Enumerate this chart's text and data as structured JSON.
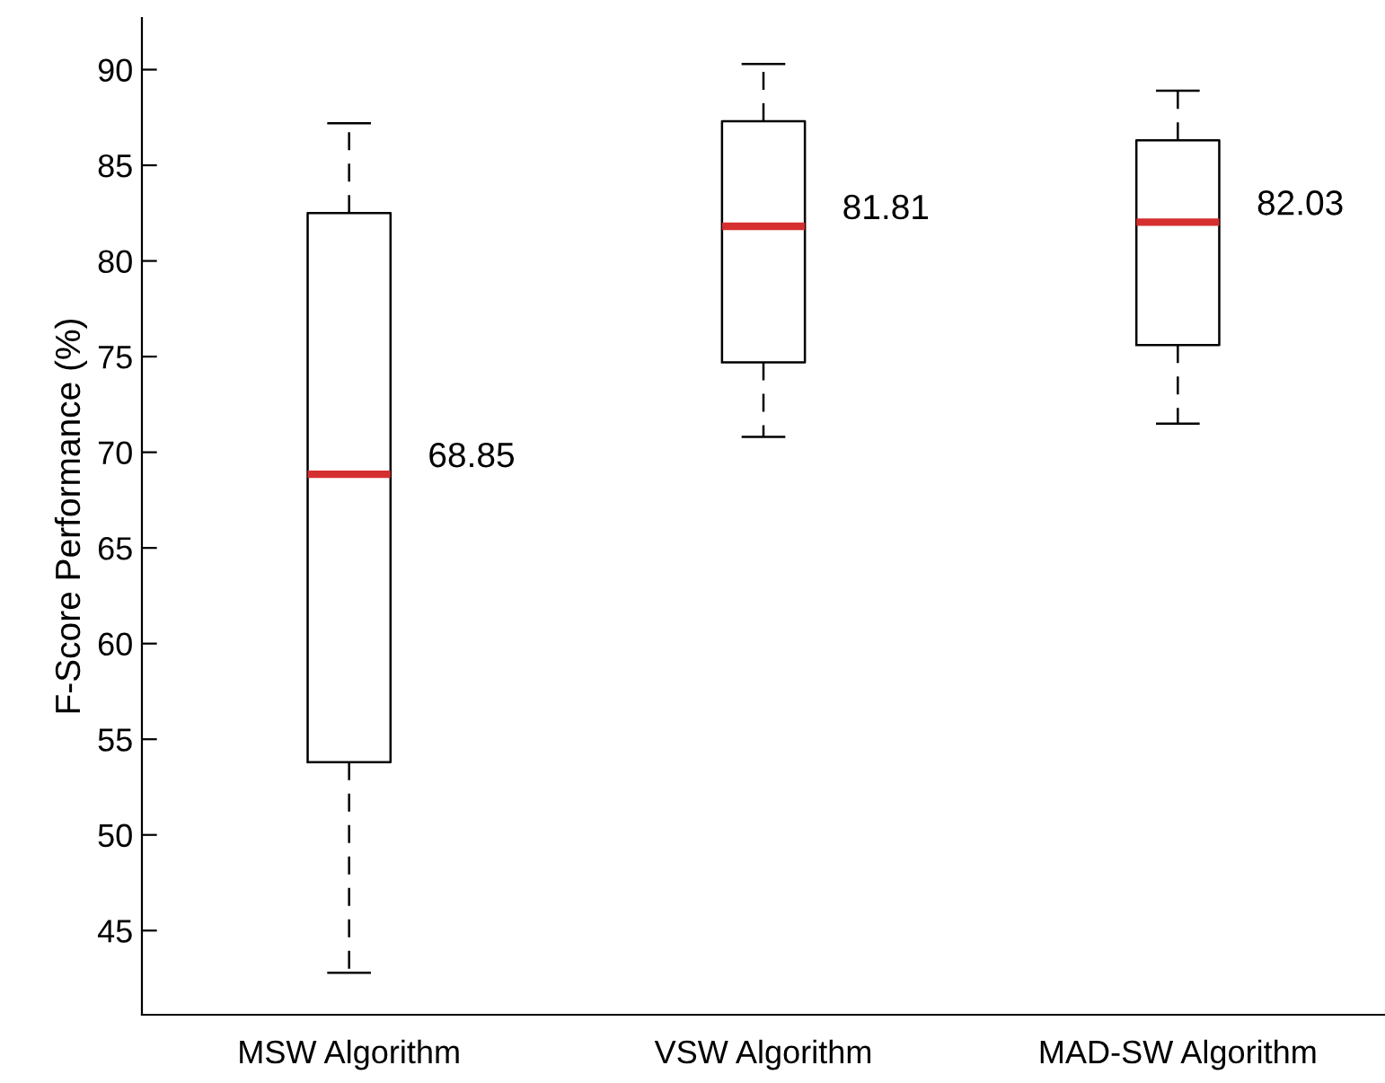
{
  "chart_data": {
    "type": "box",
    "ylabel": "F-Score Performance (%)",
    "categories": [
      "MSW Algorithm",
      "VSW Algorithm",
      "MAD-SW Algorithm"
    ],
    "boxes": [
      {
        "low": 42.8,
        "q1": 53.8,
        "median": 68.85,
        "q3": 82.5,
        "high": 87.2
      },
      {
        "low": 70.8,
        "q1": 74.7,
        "median": 81.81,
        "q3": 87.3,
        "high": 90.3
      },
      {
        "low": 71.5,
        "q1": 75.6,
        "median": 82.03,
        "q3": 86.3,
        "high": 88.9
      }
    ],
    "color": "#000000",
    "ylim": [
      40.6,
      92.7
    ],
    "yticks": [
      45,
      50,
      55,
      60,
      65,
      70,
      75,
      80,
      85,
      90
    ],
    "annotations": [
      {
        "text": "68.85",
        "x": "MSW Algorithm",
        "y": 68.85
      },
      {
        "text": "81.81",
        "x": "VSW Algorithm",
        "y": 81.81
      },
      {
        "text": "82.03",
        "x": "MAD-SW Algorithm",
        "y": 82.03
      }
    ],
    "grid": false,
    "legend": false
  }
}
